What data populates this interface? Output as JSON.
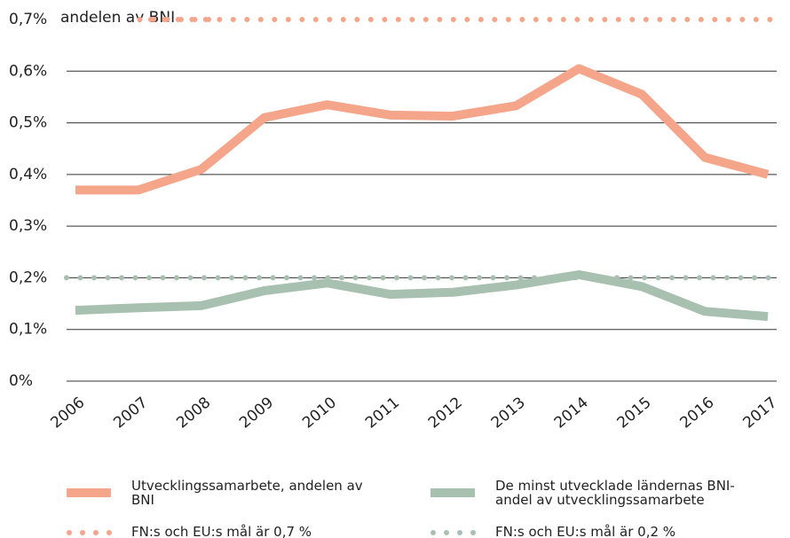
{
  "chart_data": {
    "type": "line",
    "y_label": "andelen av BNI",
    "categories": [
      "2006",
      "2007",
      "2008",
      "2009",
      "2010",
      "2011",
      "2012",
      "2013",
      "2014",
      "2015",
      "2016",
      "2017"
    ],
    "series": [
      {
        "name": "Utvecklingssamarbete, andelen av BNI",
        "color": "#f4a58a",
        "style": "solid",
        "values": [
          0.37,
          0.37,
          0.41,
          0.51,
          0.535,
          0.515,
          0.513,
          0.533,
          0.605,
          0.555,
          0.433,
          0.4
        ]
      },
      {
        "name": "De minst utvecklade ländernas BNI-andel av utvecklingssamarbete",
        "color": "#a8c0b0",
        "style": "solid",
        "values": [
          0.137,
          0.142,
          0.146,
          0.175,
          0.19,
          0.168,
          0.172,
          0.186,
          0.206,
          0.183,
          0.135,
          0.125
        ]
      },
      {
        "name": "FN:s och EU:s mål är 0,7 %",
        "color": "#f4a58a",
        "style": "dotted",
        "values": [
          0.7,
          0.7,
          0.7,
          0.7,
          0.7,
          0.7,
          0.7,
          0.7,
          0.7,
          0.7,
          0.7,
          0.7
        ]
      },
      {
        "name": "FN:s och EU:s mål är 0,2 %",
        "color": "#a8c0b0",
        "style": "dotted",
        "values": [
          0.2,
          0.2,
          0.2,
          0.2,
          0.2,
          0.2,
          0.2,
          0.2,
          0.2,
          0.2,
          0.2,
          0.2
        ]
      }
    ],
    "ylim": [
      0,
      0.7
    ],
    "yticks": [
      {
        "value": 0,
        "label": "0%"
      },
      {
        "value": 0.1,
        "label": "0,1%"
      },
      {
        "value": 0.2,
        "label": "0,2%"
      },
      {
        "value": 0.3,
        "label": "0,3%"
      },
      {
        "value": 0.4,
        "label": "0,4%"
      },
      {
        "value": 0.5,
        "label": "0,5%"
      },
      {
        "value": 0.6,
        "label": "0,6%"
      },
      {
        "value": 0.7,
        "label": "0,7%"
      }
    ],
    "grid": true
  }
}
